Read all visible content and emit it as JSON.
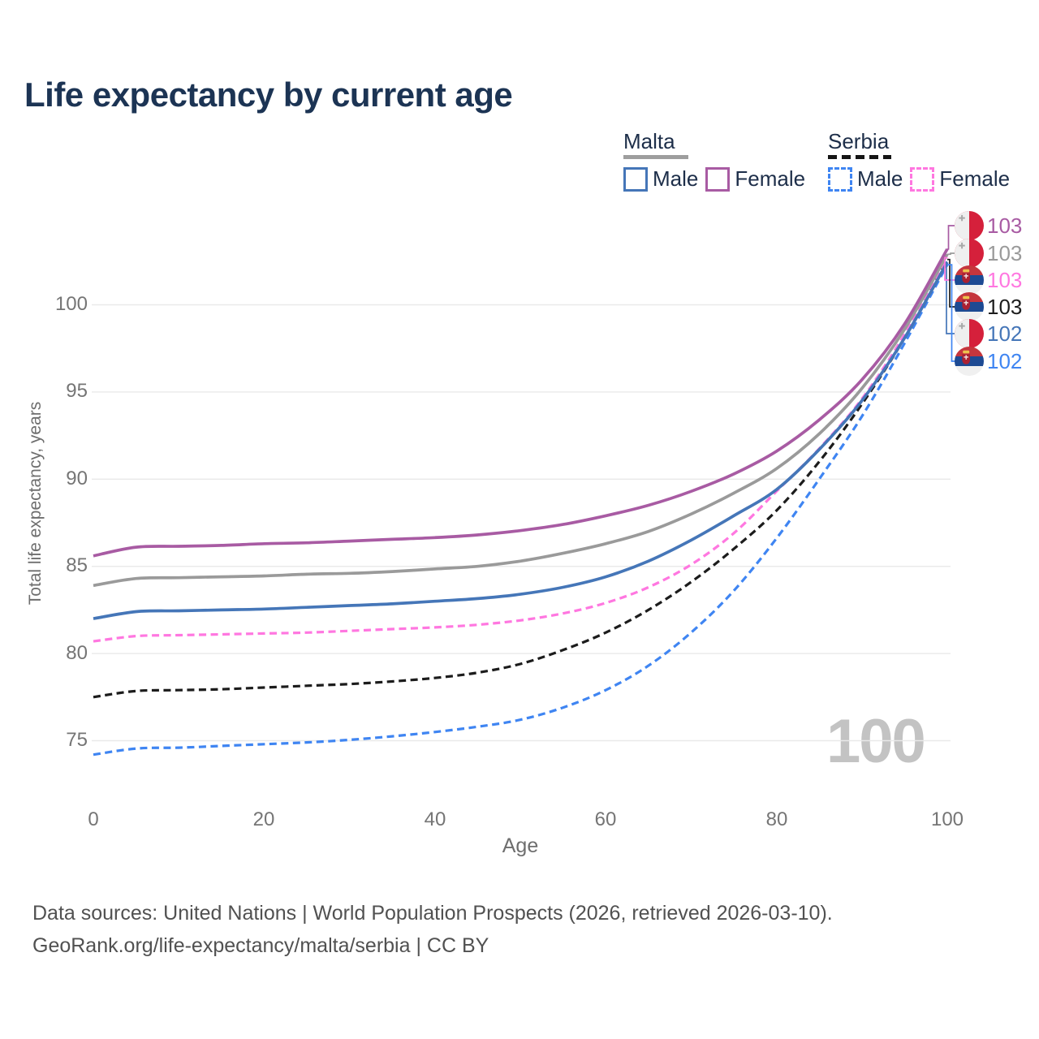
{
  "title": "Life expectancy by current age",
  "legend": {
    "groups": [
      {
        "label": "Malta",
        "line_style": "solid",
        "line_color": "#9e9e9e",
        "entries": [
          {
            "label": "Male",
            "color": "#4576b8",
            "dashed": false
          },
          {
            "label": "Female",
            "color": "#a85ba3",
            "dashed": false
          }
        ]
      },
      {
        "label": "Serbia",
        "line_style": "dashed",
        "line_color": "#151515",
        "entries": [
          {
            "label": "Male",
            "color": "#3f85f2",
            "dashed": true
          },
          {
            "label": "Female",
            "color": "#ff77e0",
            "dashed": true
          }
        ]
      }
    ]
  },
  "chart_data": {
    "type": "line",
    "title": "Life expectancy by current age",
    "xlabel": "Age",
    "ylabel": "Total life expectancy, years",
    "xlim": [
      0,
      100
    ],
    "ylim": [
      73.5,
      104.5
    ],
    "xticks": [
      0,
      20,
      40,
      60,
      80,
      100
    ],
    "yticks": [
      75,
      80,
      85,
      90,
      95,
      100
    ],
    "grid": "horizontal",
    "legend_position": "top-right",
    "watermark": "100",
    "x": [
      0,
      5,
      10,
      15,
      20,
      25,
      30,
      35,
      40,
      45,
      50,
      55,
      60,
      65,
      70,
      75,
      80,
      85,
      90,
      95,
      100
    ],
    "series": [
      {
        "name": "Malta Female",
        "country": "Malta",
        "sex": "Female",
        "style": "solid",
        "color": "#a85ba3",
        "end_label": "103",
        "end_row": 0,
        "values": [
          85.6,
          86.1,
          86.15,
          86.2,
          86.3,
          86.35,
          86.45,
          86.55,
          86.65,
          86.8,
          87.05,
          87.4,
          87.9,
          88.5,
          89.3,
          90.3,
          91.6,
          93.4,
          95.7,
          98.9,
          103.2
        ]
      },
      {
        "name": "Malta Both sexes",
        "country": "Malta",
        "sex": "Both",
        "style": "solid",
        "color": "#9a9a9a",
        "end_label": "103",
        "end_row": 1,
        "values": [
          83.9,
          84.3,
          84.35,
          84.4,
          84.45,
          84.55,
          84.6,
          84.7,
          84.85,
          85.0,
          85.3,
          85.75,
          86.3,
          87.0,
          88.0,
          89.2,
          90.6,
          92.6,
          95.2,
          98.6,
          102.9
        ]
      },
      {
        "name": "Malta Male",
        "country": "Malta",
        "sex": "Male",
        "style": "solid",
        "color": "#4576b8",
        "end_label": "102",
        "end_row": 4,
        "values": [
          82.0,
          82.4,
          82.45,
          82.5,
          82.55,
          82.65,
          82.75,
          82.85,
          83.0,
          83.15,
          83.4,
          83.8,
          84.4,
          85.3,
          86.5,
          87.9,
          89.4,
          91.7,
          94.5,
          98.1,
          102.45
        ]
      },
      {
        "name": "Serbia Female",
        "country": "Serbia",
        "sex": "Female",
        "style": "dashed",
        "color": "#ff77e0",
        "end_label": "103",
        "end_row": 2,
        "values": [
          80.7,
          81.0,
          81.05,
          81.1,
          81.15,
          81.2,
          81.3,
          81.4,
          81.5,
          81.65,
          81.9,
          82.3,
          82.9,
          83.8,
          85.1,
          86.9,
          89.3,
          91.75,
          94.6,
          98.3,
          102.7
        ]
      },
      {
        "name": "Serbia Both sexes",
        "country": "Serbia",
        "sex": "Both",
        "style": "dashed",
        "color": "#1c1c1c",
        "end_label": "103",
        "end_row": 3,
        "values": [
          77.5,
          77.85,
          77.9,
          77.95,
          78.05,
          78.15,
          78.25,
          78.4,
          78.6,
          78.9,
          79.4,
          80.2,
          81.2,
          82.5,
          84.1,
          86.0,
          88.2,
          91.0,
          94.3,
          98.1,
          102.6
        ]
      },
      {
        "name": "Serbia Male",
        "country": "Serbia",
        "sex": "Male",
        "style": "dashed",
        "color": "#3f85f2",
        "end_label": "102",
        "end_row": 5,
        "values": [
          74.2,
          74.55,
          74.6,
          74.7,
          74.8,
          74.9,
          75.05,
          75.25,
          75.5,
          75.8,
          76.2,
          76.9,
          77.9,
          79.3,
          81.2,
          83.6,
          86.6,
          90.0,
          93.6,
          97.8,
          102.3
        ]
      }
    ]
  },
  "footer": {
    "line1": "Data sources: United Nations | World Population Prospects (2026, retrieved 2026-03-10).",
    "line2": "GeoRank.org/life-expectancy/malta/serbia | CC BY"
  }
}
